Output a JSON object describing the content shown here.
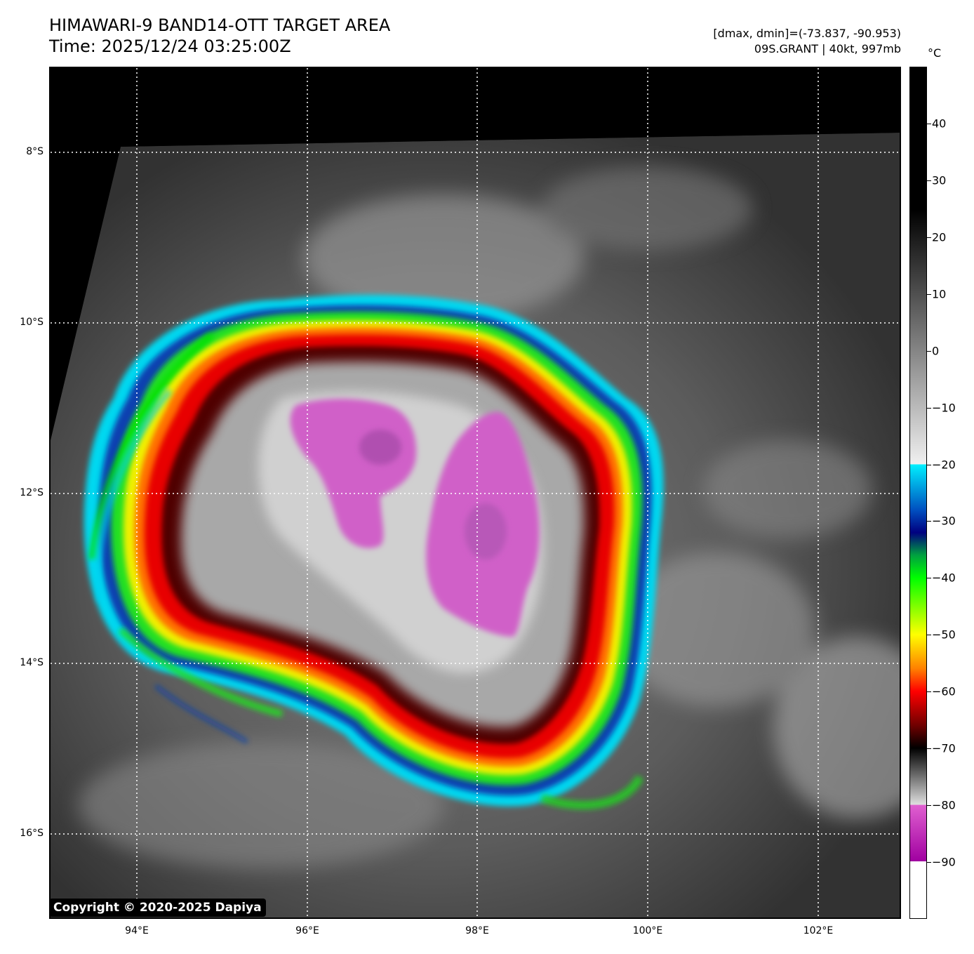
{
  "header": {
    "title_line1": "HIMAWARI-9 BAND14-OTT TARGET AREA",
    "title_line2": "Time: 2025/12/24 03:25:00Z",
    "meta_line1": "[dmax, dmin]=(-73.837, -90.953)",
    "meta_line2": "09S.GRANT | 40kt, 997mb"
  },
  "map": {
    "latitudes": [
      {
        "label": "8°S",
        "value": -8
      },
      {
        "label": "10°S",
        "value": -10
      },
      {
        "label": "12°S",
        "value": -12
      },
      {
        "label": "14°S",
        "value": -14
      },
      {
        "label": "16°S",
        "value": -16
      }
    ],
    "longitudes": [
      {
        "label": "94°E",
        "value": 94
      },
      {
        "label": "96°E",
        "value": 96
      },
      {
        "label": "98°E",
        "value": 98
      },
      {
        "label": "100°E",
        "value": 100
      },
      {
        "label": "102°E",
        "value": 102
      }
    ],
    "gridlines": "dotted white",
    "copyright": "Copyright © 2020-2025 Dapiya",
    "storm_name": "09S.GRANT",
    "storm_intensity": "40kt, 997mb",
    "coldest_top_colors": "magenta core surrounded by gray, red, yellow, green, blue bands"
  },
  "colorbar": {
    "unit": "°C",
    "range": [
      -100,
      50
    ],
    "ticks": [
      {
        "label": "40",
        "value": 40
      },
      {
        "label": "30",
        "value": 30
      },
      {
        "label": "20",
        "value": 20
      },
      {
        "label": "10",
        "value": 10
      },
      {
        "label": "0",
        "value": 0
      },
      {
        "label": "−10",
        "value": -10
      },
      {
        "label": "−20",
        "value": -20
      },
      {
        "label": "−30",
        "value": -30
      },
      {
        "label": "−40",
        "value": -40
      },
      {
        "label": "−50",
        "value": -50
      },
      {
        "label": "−60",
        "value": -60
      },
      {
        "label": "−70",
        "value": -70
      },
      {
        "label": "−80",
        "value": -80
      },
      {
        "label": "−90",
        "value": -90
      }
    ],
    "stops": [
      {
        "t": 50,
        "color": "#000000"
      },
      {
        "t": 25,
        "color": "#000000"
      },
      {
        "t": -20,
        "color": "#f0f0f0"
      },
      {
        "t": -20,
        "color": "#00f0ff"
      },
      {
        "t": -28,
        "color": "#0050c0"
      },
      {
        "t": -32,
        "color": "#000080"
      },
      {
        "t": -36,
        "color": "#00a040"
      },
      {
        "t": -40,
        "color": "#00ff00"
      },
      {
        "t": -50,
        "color": "#ffff00"
      },
      {
        "t": -56,
        "color": "#ff8000"
      },
      {
        "t": -60,
        "color": "#ff0000"
      },
      {
        "t": -66,
        "color": "#700000"
      },
      {
        "t": -70,
        "color": "#000000"
      },
      {
        "t": -80,
        "color": "#e0e0e0"
      },
      {
        "t": -80,
        "color": "#e060d0"
      },
      {
        "t": -90,
        "color": "#a000a0"
      },
      {
        "t": -90,
        "color": "#ffffff"
      },
      {
        "t": -100,
        "color": "#ffffff"
      }
    ]
  }
}
